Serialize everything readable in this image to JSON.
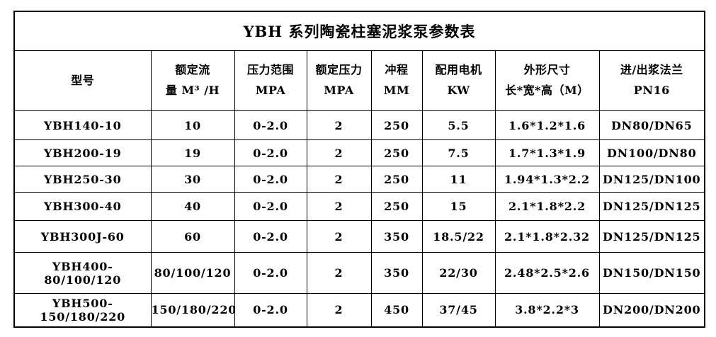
{
  "title": "YBH 系列陶瓷柱塞泥浆泵参数表",
  "columns": [
    {
      "line1": "型号",
      "line2": ""
    },
    {
      "line1": "额定流",
      "line2": "量 M³ /H"
    },
    {
      "line1": "压力范围",
      "line2": "MPA"
    },
    {
      "line1": "额定压力",
      "line2": "MPA"
    },
    {
      "line1": "冲程",
      "line2": "MM"
    },
    {
      "line1": "配用电机",
      "line2": "KW"
    },
    {
      "line1": "外形尺寸",
      "line2": "长*宽*高（M）"
    },
    {
      "line1": "进/出浆法兰",
      "line2": "PN16"
    }
  ],
  "rows": [
    [
      "YBH140-10",
      "10",
      "0-2.0",
      "2",
      "250",
      "5.5",
      "1.6*1.2*1.6",
      "DN80/DN65"
    ],
    [
      "YBH200-19",
      "19",
      "0-2.0",
      "2",
      "250",
      "7.5",
      "1.7*1.3*1.9",
      "DN100/DN80"
    ],
    [
      "YBH250-30",
      "30",
      "0-2.0",
      "2",
      "250",
      "11",
      "1.94*1.3*2.2",
      "DN125/DN100"
    ],
    [
      "YBH300-40",
      "40",
      "0-2.0",
      "2",
      "250",
      "15",
      "2.1*1.8*2.2",
      "DN125/DN125"
    ],
    [
      "YBH300J-60",
      "60",
      "0-2.0",
      "2",
      "350",
      "18.5/22",
      "2.1*1.8*2.32",
      "DN125/DN125"
    ],
    [
      "YBH400-80/100/120",
      "80/100/120",
      "0-2.0",
      "2",
      "350",
      "22/30",
      "2.48*2.5*2.6",
      "DN150/DN150"
    ],
    [
      "YBH500-150/180/220",
      "150/180/220",
      "0-2.0",
      "2",
      "450",
      "37/45",
      "3.8*2.2*3",
      "DN200/DN200"
    ]
  ],
  "colors": {
    "border": "#000000",
    "text": "#000000",
    "background": "#ffffff"
  }
}
